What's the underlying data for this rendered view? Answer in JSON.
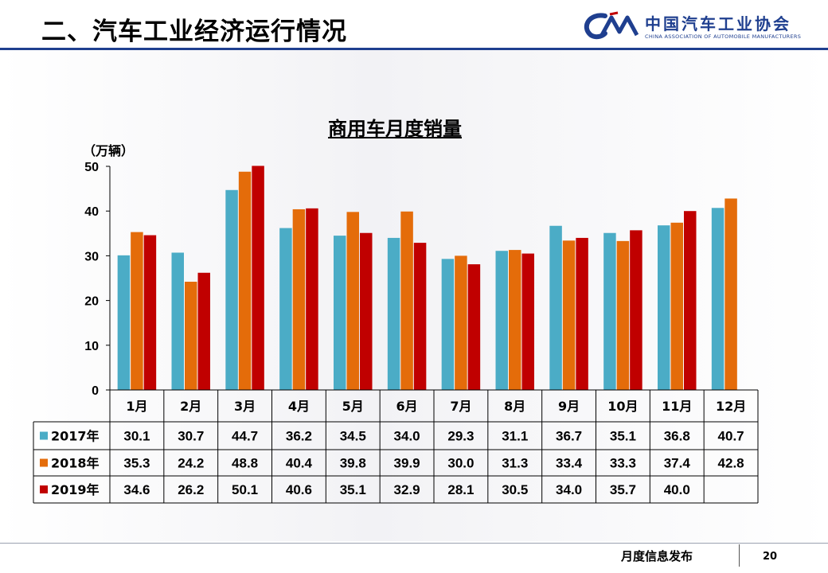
{
  "header": {
    "title": "二、汽车工业经济运行情况",
    "logo_cn": "中国汽车工业协会",
    "logo_en": "CHINA ASSOCIATION OF AUTOMOBILE MANUFACTURERS"
  },
  "footer": {
    "text": "月度信息发布",
    "page": "20"
  },
  "colors": {
    "brand": "#1f3f8f",
    "s2017": "#4bacc6",
    "s2018": "#e46c0a",
    "s2019": "#c00000"
  },
  "chart_data": {
    "type": "bar",
    "title": "商用车月度销量",
    "ylabel": "（万辆）",
    "ylim": [
      0,
      50
    ],
    "yticks": [
      0,
      10,
      20,
      30,
      40,
      50
    ],
    "grid": false,
    "legend": "table",
    "categories": [
      "1月",
      "2月",
      "3月",
      "4月",
      "5月",
      "6月",
      "7月",
      "8月",
      "9月",
      "10月",
      "11月",
      "12月"
    ],
    "series": [
      {
        "name": "2017年",
        "color": "#4bacc6",
        "values": [
          30.1,
          30.7,
          44.7,
          36.2,
          34.5,
          34.0,
          29.3,
          31.1,
          36.7,
          35.1,
          36.8,
          40.7
        ]
      },
      {
        "name": "2018年",
        "color": "#e46c0a",
        "values": [
          35.3,
          24.2,
          48.8,
          40.4,
          39.8,
          39.9,
          30.0,
          31.3,
          33.4,
          33.3,
          37.4,
          42.8
        ]
      },
      {
        "name": "2019年",
        "color": "#c00000",
        "values": [
          34.6,
          26.2,
          50.1,
          40.6,
          35.1,
          32.9,
          28.1,
          30.5,
          34.0,
          35.7,
          40.0,
          null
        ]
      }
    ],
    "table_text": [
      [
        "30.1",
        "30.7",
        "44.7",
        "36.2",
        "34.5",
        "34.0",
        "29.3",
        "31.1",
        "36.7",
        "35.1",
        "36.8",
        "40.7"
      ],
      [
        "35.3",
        "24.2",
        "48.8",
        "40.4",
        "39.8",
        "39.9",
        "30.0",
        "31.3",
        "33.4",
        "33.3",
        "37.4",
        "42.8"
      ],
      [
        "34.6",
        "26.2",
        "50.1",
        "40.6",
        "35.1",
        "32.9",
        "28.1",
        "30.5",
        "34.0",
        "35.7",
        "40.0",
        ""
      ]
    ]
  }
}
